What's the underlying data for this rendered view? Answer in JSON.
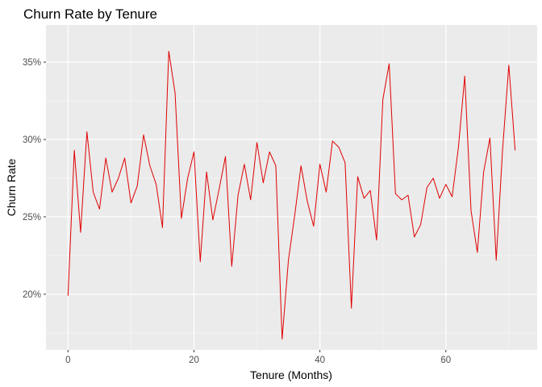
{
  "chart_data": {
    "type": "line",
    "title": "Churn Rate by Tenure",
    "xlabel": "Tenure (Months)",
    "ylabel": "Churn Rate",
    "xlim": [
      -3.5,
      74.5
    ],
    "ylim": [
      0.164,
      0.374
    ],
    "x_ticks": [
      0,
      20,
      40,
      60
    ],
    "x_tick_labels": [
      "0",
      "20",
      "40",
      "60"
    ],
    "y_ticks": [
      0.2,
      0.25,
      0.3,
      0.35
    ],
    "y_tick_labels": [
      "20%",
      "25%",
      "30%",
      "35%"
    ],
    "grid": true,
    "line_color": "#e00000",
    "panel_background": "#ebebeb",
    "series": [
      {
        "x": [
          0,
          1,
          2,
          3,
          4,
          5,
          6,
          7,
          8,
          9,
          10,
          11,
          12,
          13,
          14,
          15,
          16,
          17,
          18,
          19,
          20,
          21,
          22,
          23,
          24,
          25,
          26,
          27,
          28,
          29,
          30,
          31,
          32,
          33,
          34,
          35,
          36,
          37,
          38,
          39,
          40,
          41,
          42,
          43,
          44,
          45,
          46,
          47,
          48,
          49,
          50,
          51,
          52,
          53,
          54,
          55,
          56,
          57,
          58,
          59,
          60,
          61,
          62,
          63,
          64,
          65,
          66,
          67,
          68,
          69,
          70,
          71
        ],
        "values": [
          0.199,
          0.293,
          0.24,
          0.305,
          0.266,
          0.255,
          0.288,
          0.266,
          0.275,
          0.288,
          0.259,
          0.27,
          0.303,
          0.283,
          0.271,
          0.243,
          0.357,
          0.33,
          0.249,
          0.275,
          0.292,
          0.221,
          0.279,
          0.248,
          0.268,
          0.289,
          0.218,
          0.264,
          0.284,
          0.261,
          0.298,
          0.272,
          0.292,
          0.283,
          0.171,
          0.222,
          0.251,
          0.283,
          0.26,
          0.244,
          0.284,
          0.266,
          0.299,
          0.295,
          0.285,
          0.191,
          0.276,
          0.262,
          0.267,
          0.235,
          0.326,
          0.349,
          0.265,
          0.261,
          0.264,
          0.237,
          0.245,
          0.269,
          0.275,
          0.262,
          0.271,
          0.263,
          0.295,
          0.341,
          0.254,
          0.227,
          0.279,
          0.301,
          0.222,
          0.293,
          0.348,
          0.293
        ]
      }
    ]
  }
}
